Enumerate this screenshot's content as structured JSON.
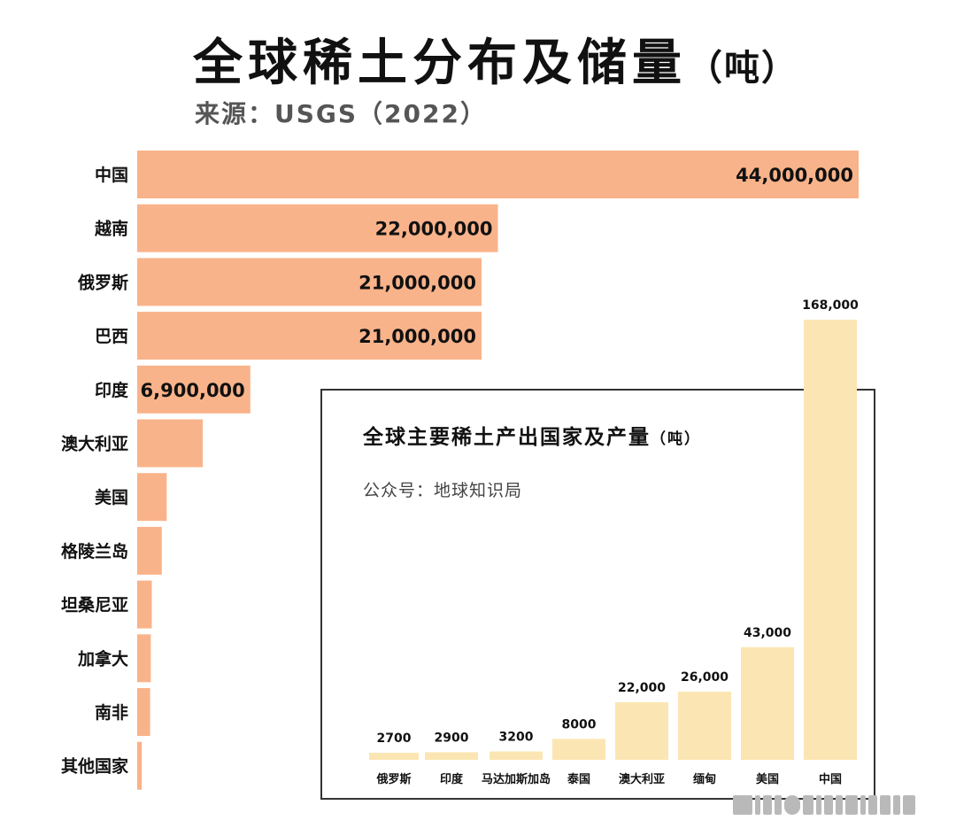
{
  "header": {
    "title": "全球稀土分布及储量",
    "title_unit": "（吨）",
    "source": "来源：USGS（2022）"
  },
  "chart_data": [
    {
      "type": "bar",
      "orientation": "horizontal",
      "categories": [
        "中国",
        "越南",
        "俄罗斯",
        "巴西",
        "印度",
        "澳大利亚",
        "美国",
        "格陵兰岛",
        "坦桑尼亚",
        "加拿大",
        "南非",
        "其他国家"
      ],
      "values": [
        44000000,
        22000000,
        21000000,
        21000000,
        6900000,
        4000000,
        1800000,
        1500000,
        890000,
        830000,
        790000,
        280000
      ],
      "value_labels": [
        "44,000,000",
        "22,000,000",
        "21,000,000",
        "21,000,000",
        "6,900,000",
        "",
        "",
        "",
        "",
        "",
        "",
        ""
      ],
      "title": "全球稀土分布及储量（吨）",
      "subtitle": "来源：USGS（2022）",
      "xlim": [
        0,
        44000000
      ],
      "color": "#f9b38a",
      "grid": false
    },
    {
      "type": "bar",
      "orientation": "vertical",
      "categories": [
        "俄罗斯",
        "印度",
        "马达加斯加岛",
        "泰国",
        "澳大利亚",
        "缅甸",
        "美国",
        "中国"
      ],
      "values": [
        2700,
        2900,
        3200,
        8000,
        22000,
        26000,
        43000,
        168000
      ],
      "value_labels": [
        "2700",
        "2900",
        "3200",
        "8000",
        "22,000",
        "26,000",
        "43,000",
        "168,000"
      ],
      "title": "全球主要稀土产出国家及产量",
      "title_unit": "（吨）",
      "subtitle": "公众号：地球知识局",
      "ylim": [
        0,
        168000
      ],
      "color": "#fbe6b3",
      "grid": false
    }
  ]
}
